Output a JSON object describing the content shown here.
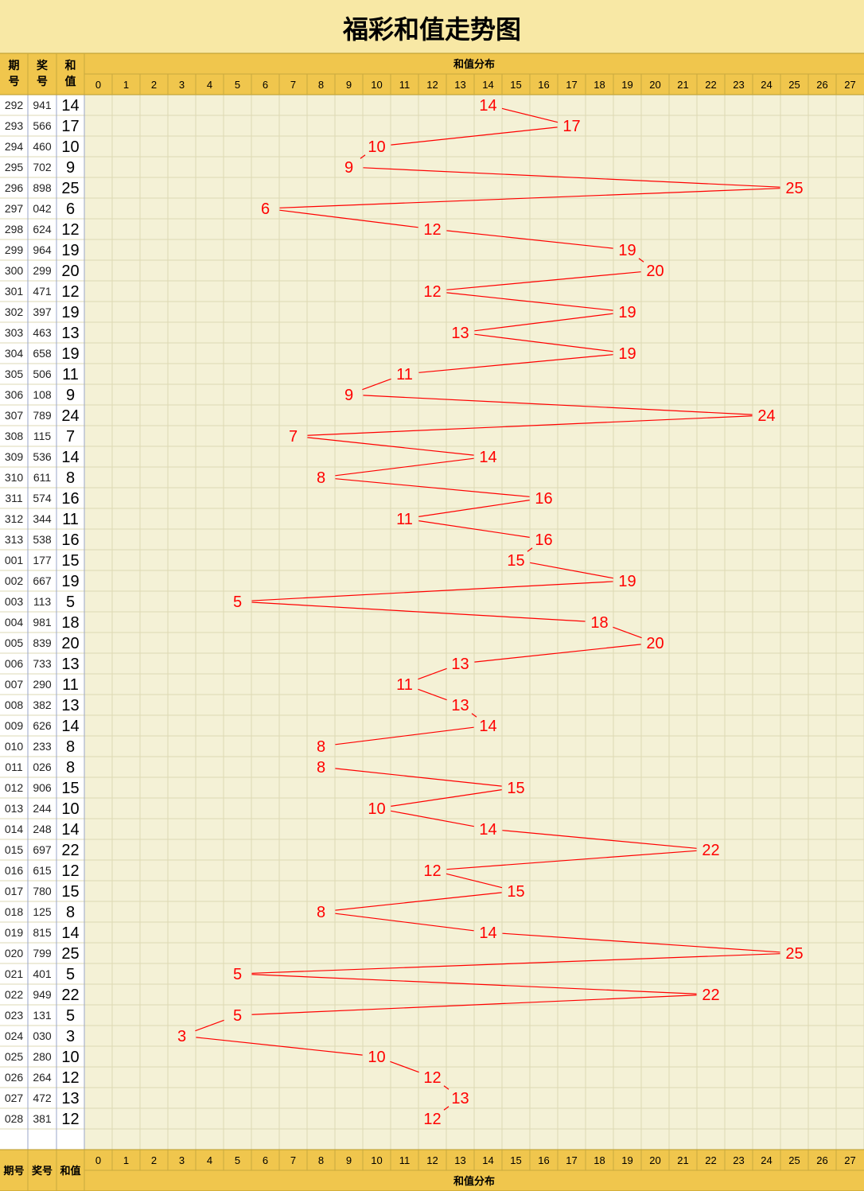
{
  "title": "福彩和值走势图",
  "header": {
    "period_label": "期\n号",
    "number_label": "奖\n号",
    "sum_label": "和\n值",
    "distribution_label": "和值分布",
    "bottom_period_label": "期号",
    "bottom_number_label": "奖号",
    "bottom_sum_label": "和值"
  },
  "colors": {
    "header_bg": "#f0c64d",
    "title_bg": "#f8e8a5",
    "grid_bg": "#f4f1d6",
    "trend": "#ff0000"
  },
  "chart_data": {
    "type": "line",
    "x_categories": [
      "0",
      "1",
      "2",
      "3",
      "4",
      "5",
      "6",
      "7",
      "8",
      "9",
      "10",
      "11",
      "12",
      "13",
      "14",
      "15",
      "16",
      "17",
      "18",
      "19",
      "20",
      "21",
      "22",
      "23",
      "24",
      "25",
      "26",
      "27"
    ],
    "series": [
      {
        "periods": [
          "292",
          "293",
          "294",
          "295",
          "296",
          "297",
          "298",
          "299",
          "300",
          "301",
          "302",
          "303",
          "304",
          "305",
          "306",
          "307",
          "308",
          "309",
          "310",
          "311",
          "312",
          "313",
          "001",
          "002",
          "003",
          "004",
          "005",
          "006",
          "007",
          "008",
          "009",
          "010",
          "011",
          "012",
          "013",
          "014",
          "015",
          "016",
          "017",
          "018",
          "019",
          "020",
          "021",
          "022",
          "023",
          "024",
          "025",
          "026",
          "027",
          "028"
        ],
        "numbers": [
          "941",
          "566",
          "460",
          "702",
          "898",
          "042",
          "624",
          "964",
          "299",
          "471",
          "397",
          "463",
          "658",
          "506",
          "108",
          "789",
          "115",
          "536",
          "611",
          "574",
          "344",
          "538",
          "177",
          "667",
          "113",
          "981",
          "839",
          "733",
          "290",
          "382",
          "626",
          "233",
          "026",
          "906",
          "244",
          "248",
          "697",
          "615",
          "780",
          "125",
          "815",
          "799",
          "401",
          "949",
          "131",
          "030",
          "280",
          "264",
          "472",
          "381"
        ],
        "values": [
          14,
          17,
          10,
          9,
          25,
          6,
          12,
          19,
          20,
          12,
          19,
          13,
          19,
          11,
          9,
          24,
          7,
          14,
          8,
          16,
          11,
          16,
          15,
          19,
          5,
          18,
          20,
          13,
          11,
          13,
          14,
          8,
          8,
          15,
          10,
          14,
          22,
          12,
          15,
          8,
          14,
          25,
          5,
          22,
          5,
          3,
          10,
          12,
          13,
          12
        ]
      }
    ]
  }
}
